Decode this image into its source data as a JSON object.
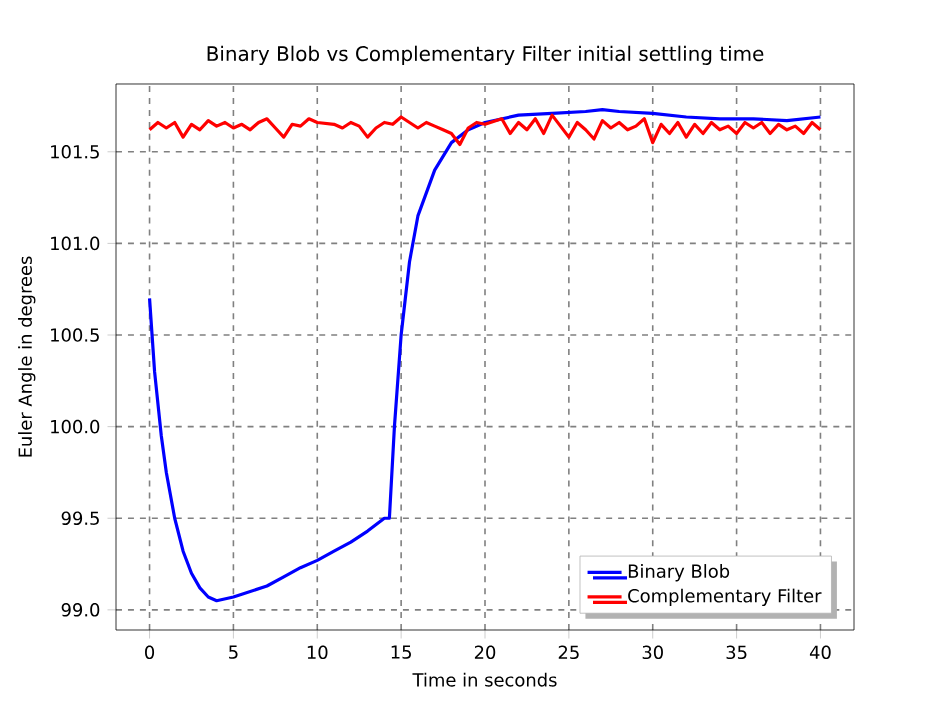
{
  "chart_data": {
    "type": "line",
    "title": "Binary Blob vs Complementary Filter initial settling time",
    "xlabel": "Time in seconds",
    "ylabel": "Euler Angle in degrees",
    "xlim": [
      -2,
      42
    ],
    "ylim": [
      98.89,
      101.87
    ],
    "xticks": [
      0,
      5,
      10,
      15,
      20,
      25,
      30,
      35,
      40
    ],
    "yticks": [
      {
        "value": 99.0,
        "label": "99.0"
      },
      {
        "value": 99.5,
        "label": "99.5"
      },
      {
        "value": 100.0,
        "label": "100.0"
      },
      {
        "value": 100.5,
        "label": "100.5"
      },
      {
        "value": 101.0,
        "label": "101.0"
      },
      {
        "value": 101.5,
        "label": "101.5"
      }
    ],
    "grid": true,
    "legend": "bottom right",
    "line_style": "solid",
    "series": [
      {
        "name": "Binary Blob",
        "color": "#0000ff",
        "x": [
          0,
          0.3,
          0.7,
          1,
          1.5,
          2,
          2.5,
          3,
          3.5,
          4,
          5,
          6,
          7,
          8,
          9,
          10,
          11,
          12,
          13,
          14,
          14.3,
          14.6,
          15,
          15.5,
          16,
          17,
          18,
          19,
          20,
          21,
          22,
          24,
          26,
          27,
          28,
          30,
          32,
          34,
          36,
          38,
          40
        ],
        "values": [
          100.7,
          100.3,
          99.95,
          99.75,
          99.5,
          99.32,
          99.2,
          99.12,
          99.07,
          99.05,
          99.07,
          99.1,
          99.13,
          99.18,
          99.23,
          99.27,
          99.32,
          99.37,
          99.43,
          99.5,
          99.5,
          100.0,
          100.5,
          100.9,
          101.15,
          101.4,
          101.55,
          101.62,
          101.66,
          101.68,
          101.7,
          101.71,
          101.72,
          101.73,
          101.72,
          101.71,
          101.69,
          101.68,
          101.68,
          101.67,
          101.69
        ]
      },
      {
        "name": "Complementary Filter",
        "color": "#ff0000",
        "x": [
          0,
          0.5,
          1,
          1.5,
          2,
          2.5,
          3,
          3.5,
          4,
          4.5,
          5,
          5.5,
          6,
          6.5,
          7,
          7.5,
          8,
          8.5,
          9,
          9.5,
          10,
          11,
          11.5,
          12,
          12.5,
          13,
          13.5,
          14,
          14.5,
          15,
          15.5,
          16,
          16.5,
          17,
          17.5,
          18,
          18.5,
          19,
          19.5,
          20,
          21,
          21.5,
          22,
          22.5,
          23,
          23.5,
          24,
          24.5,
          25,
          25.5,
          26,
          26.5,
          27,
          27.5,
          28,
          28.5,
          29,
          29.5,
          30,
          30.5,
          31,
          31.5,
          32,
          32.5,
          33,
          33.5,
          34,
          34.5,
          35,
          35.5,
          36,
          36.5,
          37,
          37.5,
          38,
          38.5,
          39,
          39.5,
          40
        ],
        "values": [
          101.62,
          101.66,
          101.63,
          101.66,
          101.58,
          101.65,
          101.62,
          101.67,
          101.64,
          101.66,
          101.63,
          101.65,
          101.62,
          101.66,
          101.68,
          101.63,
          101.58,
          101.65,
          101.64,
          101.68,
          101.66,
          101.65,
          101.63,
          101.66,
          101.64,
          101.58,
          101.63,
          101.66,
          101.65,
          101.69,
          101.66,
          101.63,
          101.66,
          101.64,
          101.62,
          101.6,
          101.54,
          101.63,
          101.66,
          101.65,
          101.68,
          101.6,
          101.66,
          101.62,
          101.68,
          101.6,
          101.7,
          101.64,
          101.58,
          101.66,
          101.62,
          101.57,
          101.67,
          101.63,
          101.66,
          101.62,
          101.64,
          101.68,
          101.55,
          101.65,
          101.6,
          101.66,
          101.58,
          101.65,
          101.6,
          101.66,
          101.62,
          101.64,
          101.6,
          101.66,
          101.63,
          101.66,
          101.6,
          101.65,
          101.62,
          101.64,
          101.6,
          101.66,
          101.62
        ]
      }
    ]
  }
}
